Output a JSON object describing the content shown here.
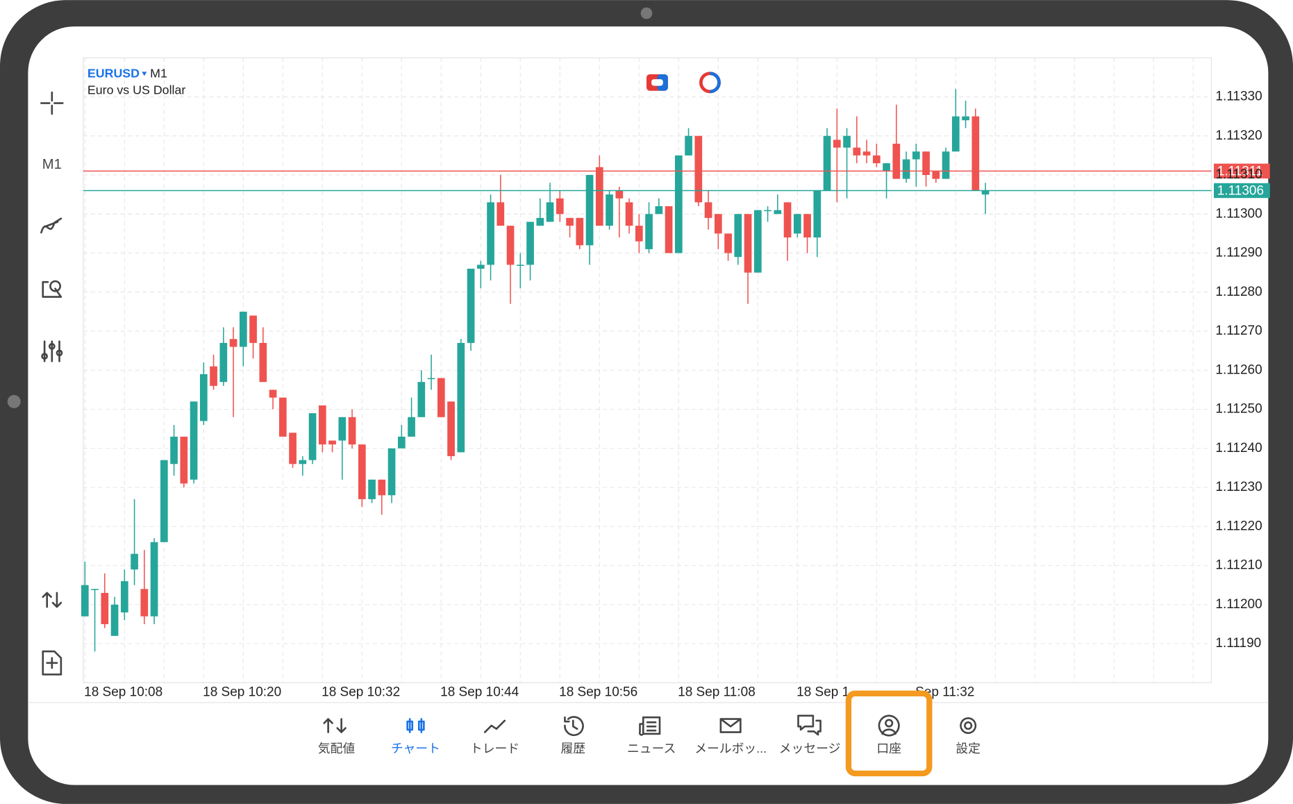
{
  "header": {
    "symbol": "EURUSD",
    "timeframe": "M1",
    "description": "Euro vs US Dollar"
  },
  "toolbar": {
    "timeframe": "M1"
  },
  "chart_data": {
    "type": "candlestick",
    "categories": [
      "18 Sep 10:08",
      null,
      null,
      null,
      null,
      null,
      null,
      null,
      null,
      null,
      null,
      null,
      "18 Sep 10:20",
      null,
      null,
      null,
      null,
      null,
      null,
      null,
      null,
      null,
      null,
      null,
      "18 Sep 10:32",
      null,
      null,
      null,
      null,
      null,
      null,
      null,
      null,
      null,
      null,
      null,
      "18 Sep 10:44",
      null,
      null,
      null,
      null,
      null,
      null,
      null,
      null,
      null,
      null,
      null,
      "18 Sep 10:56",
      null,
      null,
      null,
      null,
      null,
      null,
      null,
      null,
      null,
      null,
      null,
      "18 Sep 11:08",
      null,
      null,
      null,
      null,
      null,
      null,
      null,
      null,
      null,
      null,
      null,
      "18 Sep 1",
      null,
      null,
      null,
      null,
      null,
      null,
      null,
      null,
      null,
      null,
      null,
      "Sep 11:32",
      null,
      null,
      null,
      null,
      null,
      null,
      null
    ],
    "open": [
      1.11197,
      1.11204,
      1.11203,
      1.11192,
      1.11198,
      1.11209,
      1.11204,
      1.11197,
      1.11216,
      1.11236,
      1.11243,
      1.11232,
      1.11247,
      1.11261,
      1.11257,
      1.11268,
      1.11266,
      1.11274,
      1.11267,
      1.11255,
      1.11253,
      1.11244,
      1.11236,
      1.11237,
      1.11251,
      1.11242,
      1.11242,
      1.11248,
      1.11241,
      1.11227,
      1.11232,
      1.11228,
      1.1124,
      1.11243,
      1.11248,
      1.11258,
      1.11258,
      1.11252,
      1.11239,
      1.11267,
      1.11286,
      1.11287,
      1.11303,
      1.11297,
      1.11287,
      1.11287,
      1.11297,
      1.11298,
      1.11304,
      1.11299,
      1.11299,
      1.11292,
      1.11312,
      1.11297,
      1.11306,
      1.11303,
      1.11297,
      1.11291,
      1.113,
      1.11302,
      1.1129,
      1.11315,
      1.1132,
      1.11303,
      1.113,
      1.11295,
      1.11289,
      1.113,
      1.11285,
      1.11301,
      1.113,
      1.11303,
      1.11295,
      1.113,
      1.11294,
      1.11306,
      1.11319,
      1.11317,
      1.11317,
      1.11316,
      1.11315,
      1.11311,
      1.11318,
      1.11309,
      1.11314,
      1.11316,
      1.11311,
      1.11309,
      1.11316,
      1.11324,
      1.11325,
      1.11305
    ],
    "high": [
      1.11211,
      1.11204,
      1.11208,
      1.11202,
      1.11209,
      1.11227,
      1.11214,
      1.11217,
      1.11237,
      1.11246,
      1.11243,
      1.11252,
      1.11262,
      1.11264,
      1.11271,
      1.11271,
      1.11275,
      1.11274,
      1.11271,
      1.11255,
      1.11253,
      1.11244,
      1.11238,
      1.11249,
      1.11251,
      1.11242,
      1.11248,
      1.1125,
      1.11241,
      1.11232,
      1.11232,
      1.1124,
      1.11246,
      1.11253,
      1.1126,
      1.11264,
      1.11258,
      1.11252,
      1.11268,
      1.11286,
      1.11288,
      1.11305,
      1.1131,
      1.11297,
      1.1129,
      1.11298,
      1.11304,
      1.11308,
      1.11306,
      1.11299,
      1.11299,
      1.1131,
      1.11315,
      1.11306,
      1.11307,
      1.11304,
      1.113,
      1.11303,
      1.11304,
      1.11302,
      1.11315,
      1.11322,
      1.1132,
      1.11306,
      1.113,
      1.11295,
      1.113,
      1.113,
      1.11301,
      1.11302,
      1.11305,
      1.11303,
      1.113,
      1.113,
      1.11306,
      1.11322,
      1.11327,
      1.11322,
      1.11325,
      1.11319,
      1.11318,
      1.11313,
      1.11328,
      1.11316,
      1.11318,
      1.11316,
      1.11311,
      1.11317,
      1.11332,
      1.11329,
      1.11327,
      1.11308
    ],
    "low": [
      1.11197,
      1.11188,
      1.11194,
      1.11192,
      1.11196,
      1.11205,
      1.11195,
      1.11195,
      1.11216,
      1.11233,
      1.1123,
      1.11231,
      1.11246,
      1.11255,
      1.11256,
      1.11248,
      1.11261,
      1.11263,
      1.11257,
      1.1125,
      1.11243,
      1.11235,
      1.11233,
      1.11236,
      1.11239,
      1.11239,
      1.11232,
      1.1124,
      1.11225,
      1.11226,
      1.11223,
      1.11226,
      1.1124,
      1.11243,
      1.11248,
      1.11255,
      1.11248,
      1.11237,
      1.11239,
      1.11265,
      1.11281,
      1.11283,
      1.11297,
      1.11277,
      1.11281,
      1.11283,
      1.11297,
      1.11298,
      1.11298,
      1.11294,
      1.11291,
      1.11287,
      1.11297,
      1.11296,
      1.11294,
      1.11295,
      1.1129,
      1.1129,
      1.113,
      1.1129,
      1.1129,
      1.11315,
      1.11302,
      1.11296,
      1.11291,
      1.11288,
      1.11287,
      1.11277,
      1.11285,
      1.11298,
      1.113,
      1.11288,
      1.11294,
      1.1129,
      1.11289,
      1.11306,
      1.11303,
      1.11304,
      1.11313,
      1.11313,
      1.11312,
      1.11304,
      1.11309,
      1.11308,
      1.11307,
      1.11307,
      1.11308,
      1.11309,
      1.11316,
      1.11322,
      1.11306,
      1.113
    ],
    "close": [
      1.11205,
      1.11204,
      1.11195,
      1.112,
      1.11206,
      1.11213,
      1.11197,
      1.11216,
      1.11237,
      1.11243,
      1.11231,
      1.11252,
      1.11259,
      1.11256,
      1.11267,
      1.11266,
      1.11275,
      1.11267,
      1.11257,
      1.11253,
      1.11243,
      1.11236,
      1.11237,
      1.11249,
      1.11241,
      1.11241,
      1.11248,
      1.11241,
      1.11227,
      1.11232,
      1.11228,
      1.1124,
      1.11243,
      1.11248,
      1.11257,
      1.11258,
      1.11248,
      1.11238,
      1.11267,
      1.11286,
      1.11287,
      1.11303,
      1.11297,
      1.11287,
      1.11287,
      1.11298,
      1.11299,
      1.11303,
      1.113,
      1.11297,
      1.11292,
      1.1131,
      1.11297,
      1.11305,
      1.11304,
      1.11297,
      1.11293,
      1.113,
      1.11302,
      1.1129,
      1.11315,
      1.1132,
      1.11303,
      1.11299,
      1.11295,
      1.1129,
      1.113,
      1.11285,
      1.11301,
      1.11301,
      1.11301,
      1.11294,
      1.113,
      1.11294,
      1.11306,
      1.1132,
      1.11317,
      1.1132,
      1.11315,
      1.11315,
      1.11313,
      1.11313,
      1.11309,
      1.11314,
      1.11316,
      1.1131,
      1.11309,
      1.11316,
      1.11325,
      1.11325,
      1.11306,
      1.11306
    ],
    "up_color": "#26a69a",
    "down_color": "#ef5350",
    "ylim": [
      1.1118,
      1.1134
    ],
    "yticks": [
      {
        "value": 1.1119,
        "label": "1.11190"
      },
      {
        "value": 1.112,
        "label": "1.11200"
      },
      {
        "value": 1.1121,
        "label": "1.11210"
      },
      {
        "value": 1.1122,
        "label": "1.11220"
      },
      {
        "value": 1.1123,
        "label": "1.11230"
      },
      {
        "value": 1.1124,
        "label": "1.11240"
      },
      {
        "value": 1.1125,
        "label": "1.11250"
      },
      {
        "value": 1.1126,
        "label": "1.11260"
      },
      {
        "value": 1.1127,
        "label": "1.11270"
      },
      {
        "value": 1.1128,
        "label": "1.11280"
      },
      {
        "value": 1.1129,
        "label": "1.11290"
      },
      {
        "value": 1.113,
        "label": "1.11300"
      },
      {
        "value": 1.1131,
        "label": "1.11310"
      },
      {
        "value": 1.1132,
        "label": "1.11320"
      },
      {
        "value": 1.1133,
        "label": "1.11330"
      }
    ],
    "price_lines": [
      {
        "value": 1.11311,
        "label": "1.11311",
        "color": "#ef5350"
      },
      {
        "value": 1.11306,
        "label": "1.11306",
        "color": "#26a69a"
      }
    ],
    "grid": true
  },
  "nav": {
    "items": [
      {
        "label": "気配値"
      },
      {
        "label": "チャート"
      },
      {
        "label": "トレード"
      },
      {
        "label": "履歴"
      },
      {
        "label": "ニュース"
      },
      {
        "label": "メールボッ..."
      },
      {
        "label": "メッセージ"
      },
      {
        "label": "口座"
      },
      {
        "label": "設定"
      }
    ],
    "active": 1,
    "highlighted": 7,
    "active_color": "#1a73e8",
    "highlight_color": "#f39a1f"
  }
}
